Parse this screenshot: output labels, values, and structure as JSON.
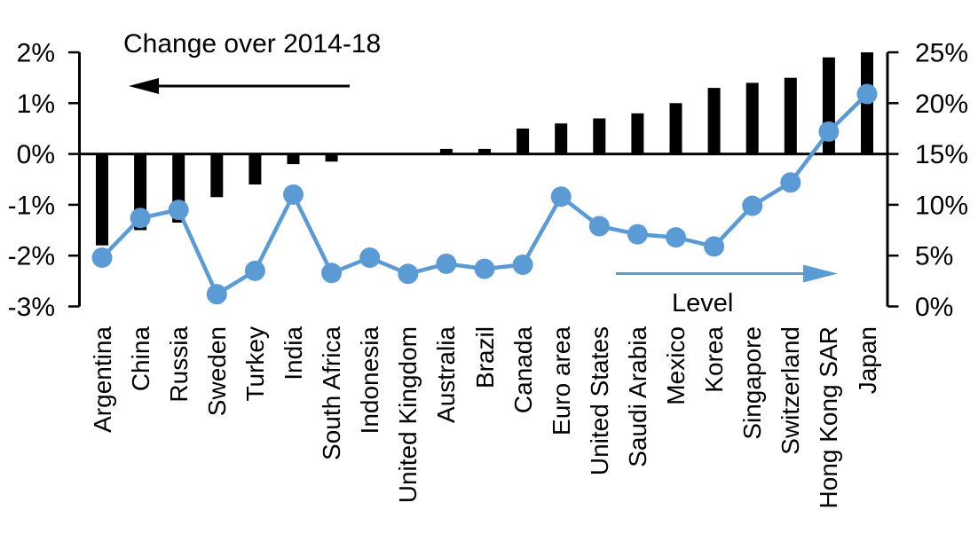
{
  "chart_data": {
    "type": "bar+line dual axis",
    "categories": [
      "Argentina",
      "China",
      "Russia",
      "Sweden",
      "Turkey",
      "India",
      "South Africa",
      "Indonesia",
      "United Kingdom",
      "Australia",
      "Brazil",
      "Canada",
      "Euro area",
      "United States",
      "Saudi Arabia",
      "Mexico",
      "Korea",
      "Singapore",
      "Switzerland",
      "Hong Kong SAR",
      "Japan"
    ],
    "series": [
      {
        "name": "Change over 2014-18",
        "type": "bar",
        "axis": "left",
        "color": "#000000",
        "values": [
          -1.8,
          -1.5,
          -1.35,
          -0.85,
          -0.6,
          -0.2,
          -0.15,
          0,
          0,
          0.1,
          0.1,
          0.5,
          0.6,
          0.7,
          0.8,
          1.0,
          1.3,
          1.4,
          1.5,
          1.9,
          2.0
        ]
      },
      {
        "name": "Level",
        "type": "line",
        "axis": "right",
        "color": "#5B9BD5",
        "values": [
          4.8,
          8.7,
          9.5,
          1.2,
          3.5,
          11.0,
          3.3,
          4.8,
          3.2,
          4.2,
          3.7,
          4.1,
          10.8,
          7.9,
          7.1,
          6.8,
          5.9,
          9.9,
          12.2,
          17.2,
          20.9
        ]
      }
    ],
    "left_axis": {
      "tick_labels": [
        "2%",
        "1%",
        "0%",
        "-1%",
        "-2%",
        "-3%"
      ],
      "tick_values": [
        2,
        1,
        0,
        -1,
        -2,
        -3
      ],
      "range": [
        -3,
        2
      ]
    },
    "right_axis": {
      "tick_labels": [
        "25%",
        "20%",
        "15%",
        "10%",
        "5%",
        "0%"
      ],
      "tick_values": [
        25,
        20,
        15,
        10,
        5,
        0
      ],
      "range": [
        0,
        25
      ]
    },
    "annotations": {
      "change_label": "Change over 2014-18",
      "level_label": "Level",
      "change_arrow_direction": "left",
      "level_arrow_direction": "right"
    },
    "legend_position": "none",
    "grid": "off"
  }
}
